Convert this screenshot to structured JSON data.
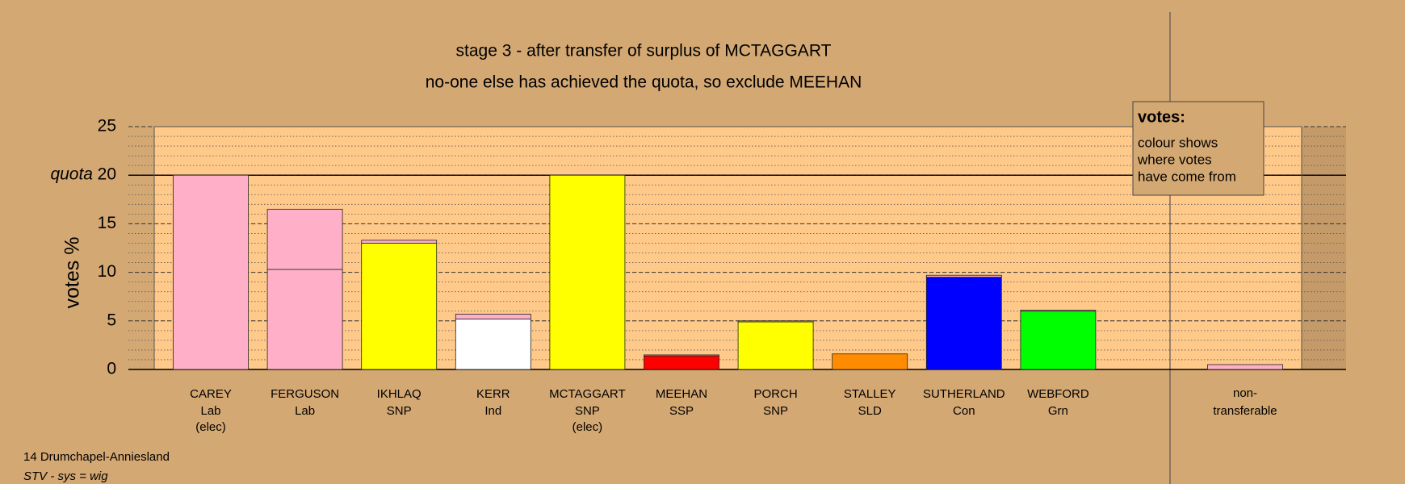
{
  "chart_data": {
    "type": "stacked-bar",
    "title": "stage 3 - after transfer of surplus of MCTAGGART",
    "subtitle": "no-one else has achieved the quota, so exclude MEEHAN",
    "y_label": "votes %",
    "quota_label": "quota",
    "quota": 20,
    "ylim": [
      0,
      25
    ],
    "yticks": [
      0,
      5,
      10,
      15,
      20,
      25
    ],
    "grid": true,
    "categories": [
      {
        "name": "CAREY",
        "party": "Lab",
        "note": "(elec)",
        "segments": [
          {
            "value": 20,
            "color": "#ffb0c8"
          }
        ]
      },
      {
        "name": "FERGUSON",
        "party": "Lab",
        "segments": [
          {
            "value": 10.3,
            "color": "#ffb0c8"
          },
          {
            "value": 6.2,
            "color": "#ffb0c8"
          }
        ]
      },
      {
        "name": "IKHLAQ",
        "party": "SNP",
        "segments": [
          {
            "value": 13,
            "color": "#ffff00"
          },
          {
            "value": 0.3,
            "color": "#ffb0c8"
          }
        ]
      },
      {
        "name": "KERR",
        "party": "Ind",
        "segments": [
          {
            "value": 5.2,
            "color": "#ffffff"
          },
          {
            "value": 0.5,
            "color": "#ffb0c8"
          }
        ]
      },
      {
        "name": "MCTAGGART",
        "party": "SNP",
        "note": "(elec)",
        "segments": [
          {
            "value": 20,
            "color": "#ffff00"
          }
        ]
      },
      {
        "name": "MEEHAN",
        "party": "SSP",
        "segments": [
          {
            "value": 1.4,
            "color": "#ff0000"
          },
          {
            "value": 0.1,
            "color": "#ffb0c8"
          }
        ]
      },
      {
        "name": "PORCH",
        "party": "SNP",
        "segments": [
          {
            "value": 4.9,
            "color": "#ffff00"
          },
          {
            "value": 0.1,
            "color": "#ffb0c8"
          }
        ]
      },
      {
        "name": "STALLEY",
        "party": "SLD",
        "segments": [
          {
            "value": 1.6,
            "color": "#ff8c00"
          }
        ]
      },
      {
        "name": "SUTHERLAND",
        "party": "Con",
        "segments": [
          {
            "value": 9.5,
            "color": "#0000ff"
          },
          {
            "value": 0.2,
            "color": "#ffb0c8"
          }
        ]
      },
      {
        "name": "WEBFORD",
        "party": "Grn",
        "segments": [
          {
            "value": 6,
            "color": "#00ff00"
          },
          {
            "value": 0.1,
            "color": "#ffb0c8"
          }
        ]
      }
    ],
    "non_transferable": {
      "label": [
        "non-",
        "transferable"
      ],
      "segments": [
        {
          "value": 0.5,
          "color": "#ffb0c8"
        }
      ]
    },
    "legend": {
      "title": "votes:",
      "lines": [
        "colour shows",
        "where votes",
        "have come from"
      ]
    },
    "footer": [
      "14 Drumchapel-Anniesland",
      "STV - sys = wig"
    ]
  }
}
